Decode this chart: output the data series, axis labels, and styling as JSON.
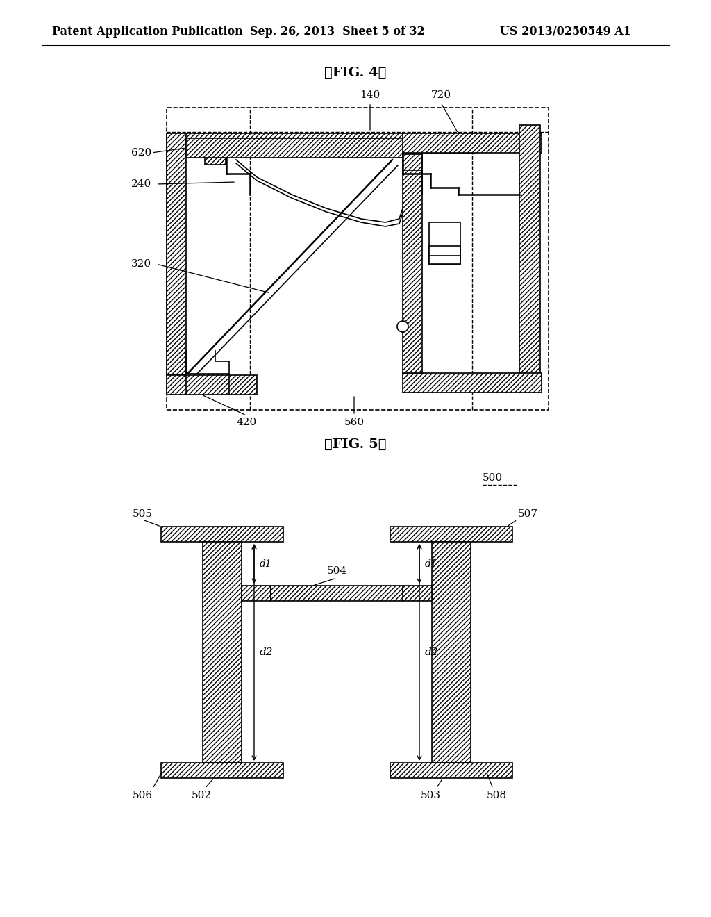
{
  "bg_color": "#ffffff",
  "line_color": "#000000",
  "header_left": "Patent Application Publication",
  "header_mid": "Sep. 26, 2013  Sheet 5 of 32",
  "header_right": "US 2013/0250549 A1",
  "fig4_title": "【FIG. 4】",
  "fig5_title": "【FIG. 5】"
}
